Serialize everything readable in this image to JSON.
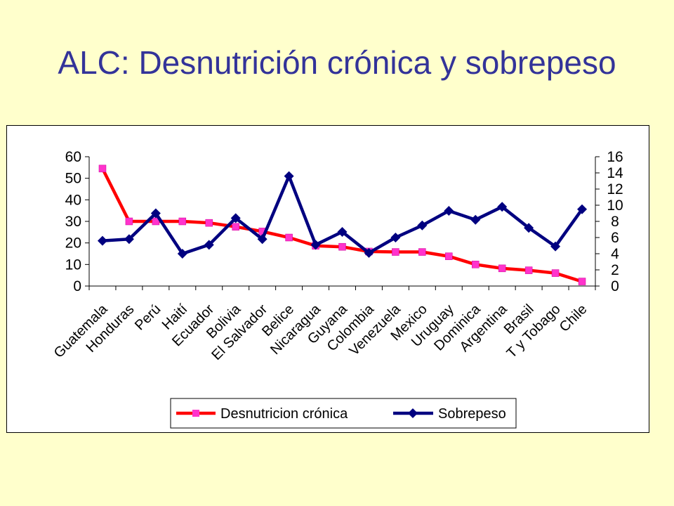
{
  "slide": {
    "title": "ALC: Desnutrición crónica y sobrepeso"
  },
  "colors": {
    "background": "#FFFFCC",
    "title": "#333399",
    "series_desnutricion_line": "#FF0000",
    "series_desnutricion_marker": "#FF33CC",
    "series_sobrepeso": "#000080"
  },
  "chart_data": {
    "type": "line",
    "categories": [
      "Guatemala",
      "Honduras",
      "Perú",
      "Haití",
      "Ecuador",
      "Bolivia",
      "El Salvador",
      "Belice",
      "Nicaragua",
      "Guyana",
      "Colombia",
      "Venezuela",
      "Mexico",
      "Uruguay",
      "Dominica",
      "Argentina",
      "Brasil",
      "T y Tobago",
      "Chile"
    ],
    "series": [
      {
        "name": "Desnutricion crónica",
        "axis": "left",
        "marker": "square",
        "values": [
          54.5,
          30.0,
          30.0,
          30.0,
          29.3,
          27.5,
          25.3,
          22.5,
          18.7,
          18.2,
          16.0,
          15.8,
          15.8,
          13.8,
          10.0,
          8.2,
          7.3,
          6.0,
          2.1
        ]
      },
      {
        "name": "Sobrepeso",
        "axis": "right",
        "marker": "diamond",
        "values": [
          5.6,
          5.8,
          9.0,
          4.0,
          5.1,
          8.4,
          5.8,
          13.6,
          5.1,
          6.7,
          4.1,
          6.0,
          7.5,
          9.3,
          8.2,
          9.8,
          7.2,
          4.9,
          9.5
        ]
      }
    ],
    "y_left": {
      "min": 0,
      "max": 60,
      "ticks": [
        0,
        10,
        20,
        30,
        40,
        50,
        60
      ]
    },
    "y_right": {
      "min": 0,
      "max": 16,
      "ticks": [
        0,
        2,
        4,
        6,
        8,
        10,
        12,
        14,
        16
      ]
    },
    "grid": false,
    "legend_position": "bottom"
  }
}
